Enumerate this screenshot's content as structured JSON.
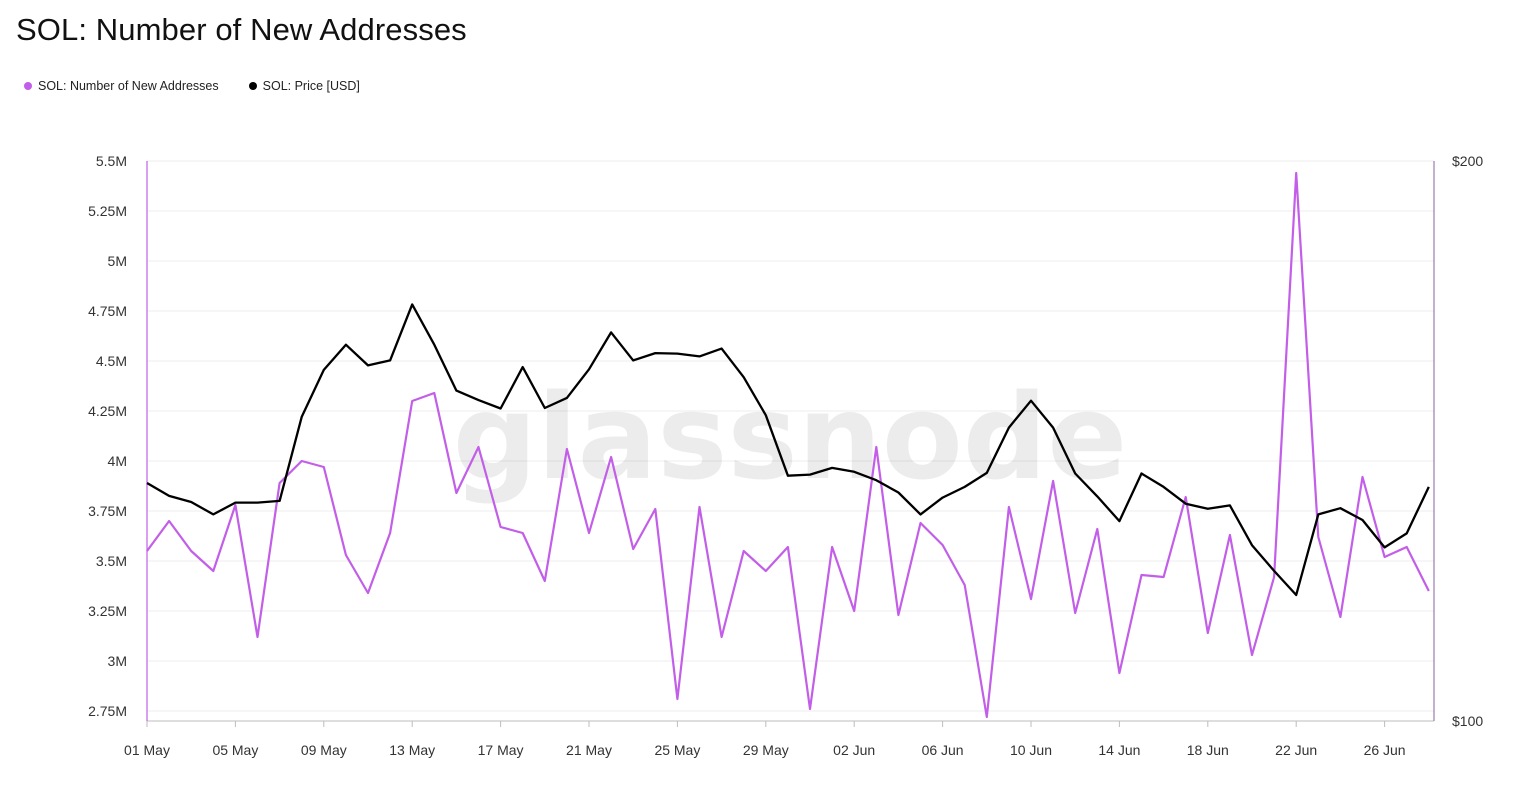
{
  "title": "SOL: Number of New Addresses",
  "watermark": "glassnode",
  "legend": [
    {
      "label": "SOL: Number of New Addresses",
      "color": "#c25ee8"
    },
    {
      "label": "SOL: Price [USD]",
      "color": "#000000"
    }
  ],
  "chart_data": {
    "type": "line",
    "title": "SOL: Number of New Addresses",
    "x": [
      "2024-05-01",
      "2024-05-02",
      "2024-05-03",
      "2024-05-04",
      "2024-05-05",
      "2024-05-06",
      "2024-05-07",
      "2024-05-08",
      "2024-05-09",
      "2024-05-10",
      "2024-05-11",
      "2024-05-12",
      "2024-05-13",
      "2024-05-14",
      "2024-05-15",
      "2024-05-16",
      "2024-05-17",
      "2024-05-18",
      "2024-05-19",
      "2024-05-20",
      "2024-05-21",
      "2024-05-22",
      "2024-05-23",
      "2024-05-24",
      "2024-05-25",
      "2024-05-26",
      "2024-05-27",
      "2024-05-28",
      "2024-05-29",
      "2024-05-30",
      "2024-05-31",
      "2024-06-01",
      "2024-06-02",
      "2024-06-03",
      "2024-06-04",
      "2024-06-05",
      "2024-06-06",
      "2024-06-07",
      "2024-06-08",
      "2024-06-09",
      "2024-06-10",
      "2024-06-11",
      "2024-06-12",
      "2024-06-13",
      "2024-06-14",
      "2024-06-15",
      "2024-06-16",
      "2024-06-17",
      "2024-06-18",
      "2024-06-19",
      "2024-06-20",
      "2024-06-21",
      "2024-06-22",
      "2024-06-23",
      "2024-06-24",
      "2024-06-25",
      "2024-06-26",
      "2024-06-27",
      "2024-06-28"
    ],
    "x_tick_labels": [
      "01 May",
      "05 May",
      "09 May",
      "13 May",
      "17 May",
      "21 May",
      "25 May",
      "29 May",
      "02 Jun",
      "06 Jun",
      "10 Jun",
      "14 Jun",
      "18 Jun",
      "22 Jun",
      "26 Jun"
    ],
    "series": [
      {
        "name": "SOL: Number of New Addresses",
        "axis": "left",
        "color": "#c25ee8",
        "values": [
          3550000,
          3700000,
          3550000,
          3450000,
          3780000,
          3120000,
          3890000,
          4000000,
          3970000,
          3530000,
          3340000,
          3640000,
          4300000,
          4340000,
          3840000,
          4070000,
          3670000,
          3640000,
          3400000,
          4060000,
          3640000,
          4020000,
          3560000,
          3760000,
          2810000,
          3770000,
          3120000,
          3550000,
          3450000,
          3570000,
          2760000,
          3570000,
          3250000,
          4070000,
          3230000,
          3690000,
          3580000,
          3380000,
          2720000,
          3770000,
          3310000,
          3900000,
          3240000,
          3660000,
          2940000,
          3430000,
          3420000,
          3820000,
          3140000,
          3630000,
          3030000,
          3420000,
          5440000,
          3620000,
          3220000,
          3920000,
          3520000,
          3570000,
          3350000
        ]
      },
      {
        "name": "SOL: Price [USD]",
        "axis": "right",
        "color": "#000000",
        "values": [
          142.5,
          140.2,
          139.1,
          136.9,
          139.0,
          139.0,
          139.3,
          154.3,
          162.7,
          167.2,
          163.5,
          164.4,
          174.4,
          167.2,
          159.0,
          157.3,
          155.8,
          163.2,
          155.9,
          157.7,
          162.8,
          169.4,
          164.4,
          165.7,
          165.6,
          165.1,
          166.5,
          161.4,
          154.6,
          143.8,
          144.0,
          145.2,
          144.5,
          143.0,
          140.8,
          136.9,
          139.9,
          141.8,
          144.3,
          152.4,
          157.2,
          152.4,
          144.2,
          140.1,
          135.7,
          144.2,
          141.8,
          138.8,
          137.9,
          138.5,
          131.4,
          126.8,
          122.5,
          136.9,
          138.0,
          135.9,
          131.0,
          133.5,
          141.8
        ]
      }
    ],
    "y_left": {
      "min": 2700000,
      "max": 5500000,
      "ticks": [
        2750000,
        3000000,
        3250000,
        3500000,
        3750000,
        4000000,
        4250000,
        4500000,
        4750000,
        5000000,
        5250000,
        5500000
      ],
      "tick_labels": [
        "2.75M",
        "3M",
        "3.25M",
        "3.5M",
        "3.75M",
        "4M",
        "4.25M",
        "4.5M",
        "4.75M",
        "5M",
        "5.25M",
        "5.5M"
      ]
    },
    "y_right": {
      "min": 100,
      "max": 200,
      "ticks": [
        100,
        200
      ],
      "tick_labels": [
        "$100",
        "$200"
      ]
    },
    "grid": true,
    "legend_position": "top-left"
  }
}
